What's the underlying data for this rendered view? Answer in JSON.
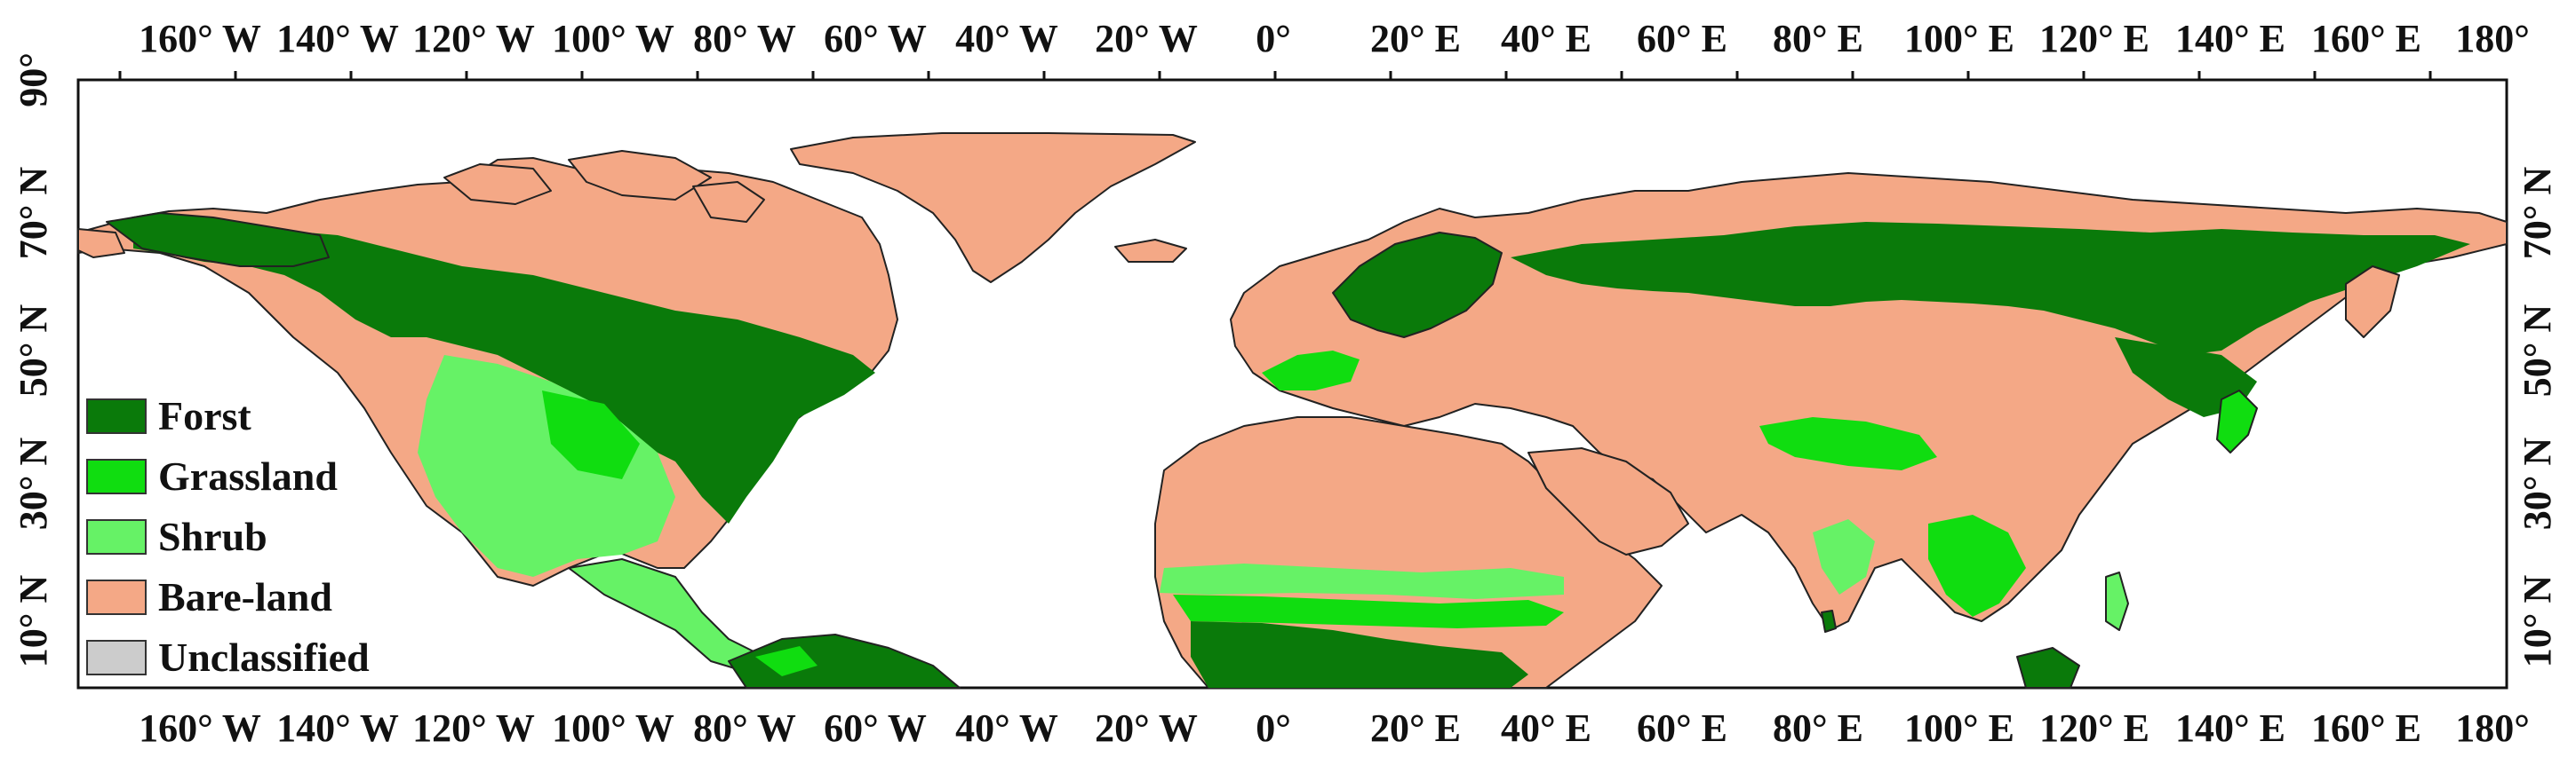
{
  "map": {
    "lon_labels": [
      "160° W",
      "140° W",
      "120° W",
      "100° W",
      "80° W",
      "60° W",
      "40° W",
      "20° W",
      "0°",
      "20° E",
      "40° E",
      "60° E",
      "80° E",
      "100° E",
      "120° E",
      "140° E",
      "160° E",
      "180°"
    ],
    "lat_labels": [
      "90°",
      "70° N",
      "50° N",
      "30° N",
      "10° N"
    ],
    "legend": [
      {
        "label": "Forst",
        "color": "#0a7a0a"
      },
      {
        "label": "Grassland",
        "color": "#10dd10"
      },
      {
        "label": "Shrub",
        "color": "#66f266"
      },
      {
        "label": "Bare-land",
        "color": "#f4a886"
      },
      {
        "label": "Unclassified",
        "color": "#cccccc"
      }
    ]
  }
}
